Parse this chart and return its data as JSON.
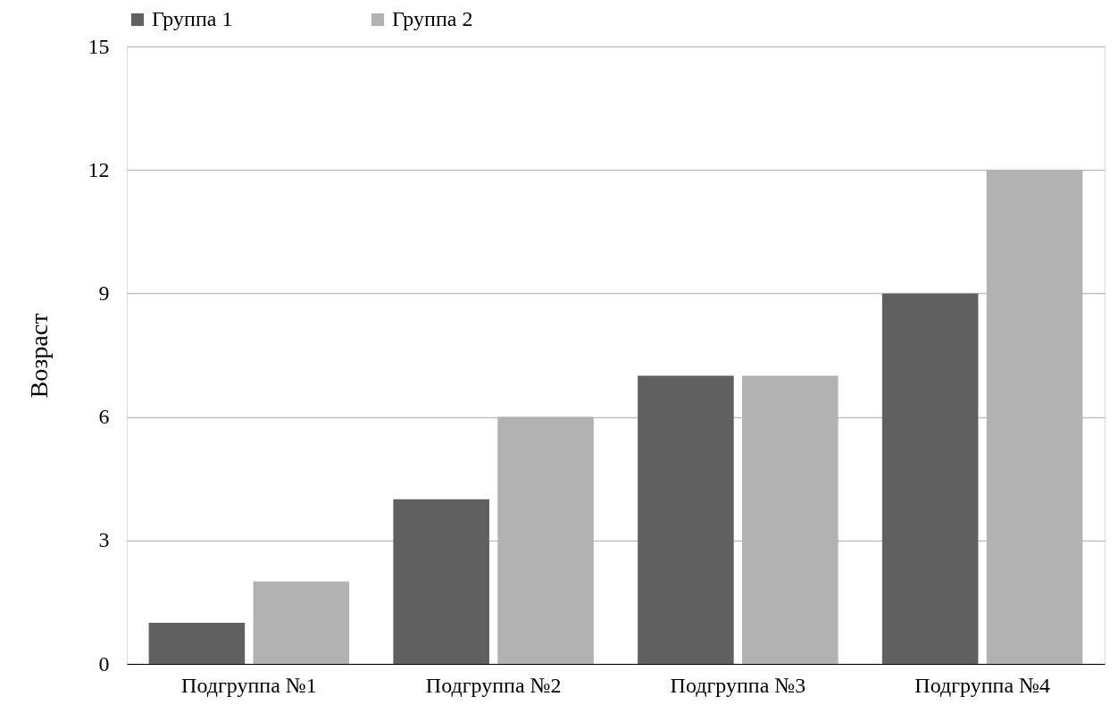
{
  "chart_data": {
    "type": "bar",
    "ylabel": "Возраст",
    "categories": [
      "Подгруппа №1",
      "Подгруппа №2",
      "Подгруппа №3",
      "Подгруппа №4"
    ],
    "series": [
      {
        "name": "Группа 1",
        "color": "#606060",
        "values": [
          1,
          4,
          7,
          9
        ]
      },
      {
        "name": "Группа 2",
        "color": "#b2b2b2",
        "values": [
          2,
          6,
          7,
          12
        ]
      }
    ],
    "ylim": [
      0,
      15
    ],
    "yticks": [
      0,
      3,
      6,
      9,
      12,
      15
    ],
    "grid": "y",
    "legend": "top"
  }
}
